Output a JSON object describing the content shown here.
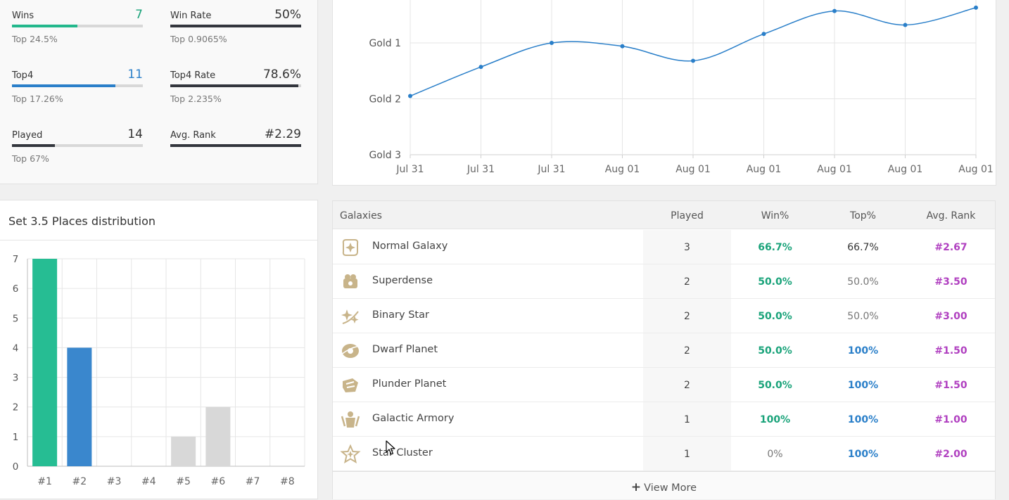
{
  "stats": [
    {
      "label": "Wins",
      "value": "7",
      "value_color": "#1aa37a",
      "fill": 0.5,
      "fill_color": "#23b88c",
      "sub": "Top 24.5%"
    },
    {
      "label": "Win Rate",
      "value": "50%",
      "value_color": "#333333",
      "fill": 1.0,
      "fill_color": "#33363d",
      "sub": "Top 0.9065%"
    },
    {
      "label": "Top4",
      "value": "11",
      "value_color": "#2a7fc9",
      "fill": 0.79,
      "fill_color": "#2a7fc9",
      "sub": "Top 17.26%"
    },
    {
      "label": "Top4 Rate",
      "value": "78.6%",
      "value_color": "#333333",
      "fill": 0.98,
      "fill_color": "#33363d",
      "sub": "Top 2.235%"
    },
    {
      "label": "Played",
      "value": "14",
      "value_color": "#333333",
      "fill": 0.33,
      "fill_color": "#33363d",
      "sub": "Top 67%"
    },
    {
      "label": "Avg. Rank",
      "value": "#2.29",
      "value_color": "#333333",
      "fill": 1.0,
      "fill_color": "#33363d",
      "sub": ""
    }
  ],
  "line_chart": {
    "type": "line",
    "y_tick_labels": [
      "Gold 1",
      "Gold 2",
      "Gold 3"
    ],
    "x_tick_labels": [
      "Jul 31",
      "Jul 31",
      "Jul 31",
      "Aug 01",
      "Aug 01",
      "Aug 01",
      "Aug 01",
      "Aug 01",
      "Aug 01"
    ],
    "values": [
      1.89,
      1.37,
      0.94,
      1.0,
      1.26,
      0.78,
      0.37,
      0.62,
      0.31
    ],
    "line_color": "#2a7fc9"
  },
  "distribution": {
    "title": "Set 3.5 Places distribution",
    "chart_data": {
      "type": "bar",
      "categories": [
        "#1",
        "#2",
        "#3",
        "#4",
        "#5",
        "#6",
        "#7",
        "#8"
      ],
      "values": [
        7,
        4,
        0,
        0,
        1,
        2,
        0,
        0
      ],
      "colors": [
        "#26bd93",
        "#3a87cd",
        "#d8d8d8",
        "#d8d8d8",
        "#d8d8d8",
        "#d8d8d8",
        "#d8d8d8",
        "#d8d8d8"
      ],
      "y_ticks": [
        "0",
        "1",
        "2",
        "3",
        "4",
        "5",
        "6",
        "7"
      ],
      "ylim": [
        0,
        7
      ]
    }
  },
  "table": {
    "headers": {
      "name": "Galaxies",
      "played": "Played",
      "win": "Win%",
      "top": "Top%",
      "avg": "Avg. Rank"
    },
    "rows": [
      {
        "icon": "normal-galaxy-icon",
        "name": "Normal Galaxy",
        "played": "3",
        "win": "66.7%",
        "win_style": "green",
        "top": "66.7%",
        "top_style": "plain",
        "avg": "#2.67"
      },
      {
        "icon": "superdense-icon",
        "name": "Superdense",
        "played": "2",
        "win": "50.0%",
        "win_style": "green",
        "top": "50.0%",
        "top_style": "grey",
        "avg": "#3.50"
      },
      {
        "icon": "binary-star-icon",
        "name": "Binary Star",
        "played": "2",
        "win": "50.0%",
        "win_style": "green",
        "top": "50.0%",
        "top_style": "grey",
        "avg": "#3.00"
      },
      {
        "icon": "dwarf-planet-icon",
        "name": "Dwarf Planet",
        "played": "2",
        "win": "50.0%",
        "win_style": "green",
        "top": "100%",
        "top_style": "blue",
        "avg": "#1.50"
      },
      {
        "icon": "plunder-planet-icon",
        "name": "Plunder Planet",
        "played": "2",
        "win": "50.0%",
        "win_style": "green",
        "top": "100%",
        "top_style": "blue",
        "avg": "#1.50"
      },
      {
        "icon": "galactic-armory-icon",
        "name": "Galactic Armory",
        "played": "1",
        "win": "100%",
        "win_style": "green",
        "top": "100%",
        "top_style": "blue",
        "avg": "#1.00"
      },
      {
        "icon": "star-cluster-icon",
        "name": "Star Cluster",
        "played": "1",
        "win": "0%",
        "win_style": "grey",
        "top": "100%",
        "top_style": "blue",
        "avg": "#2.00"
      }
    ],
    "view_more_label": "View More"
  }
}
